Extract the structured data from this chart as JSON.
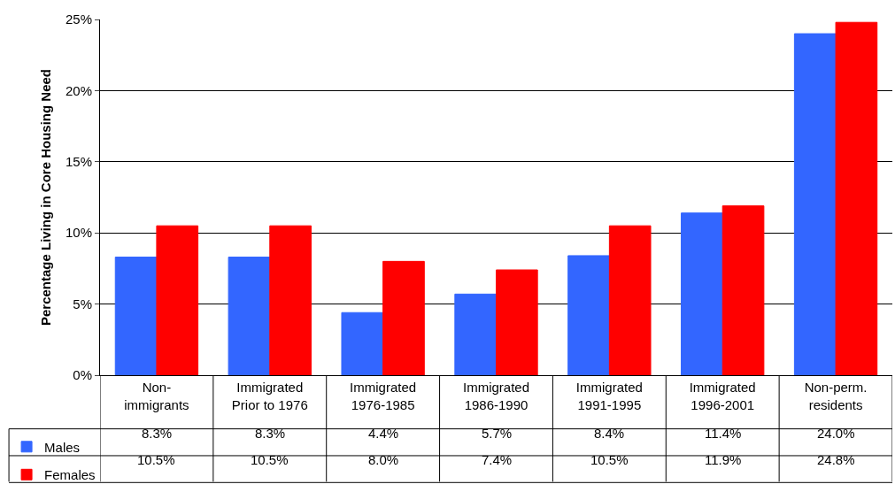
{
  "chart_data": {
    "type": "bar",
    "ylabel": "Percentage Living in Core Housing Need",
    "categories": [
      "Non-\nimmigrants",
      "Immigrated\nPrior to 1976",
      "Immigrated\n1976-1985",
      "Immigrated\n1986-1990",
      "Immigrated\n1991-1995",
      "Immigrated\n1996-2001",
      "Non-perm.\nresidents"
    ],
    "series": [
      {
        "name": "Males",
        "color": "#3366ff",
        "values": [
          8.3,
          8.3,
          4.4,
          5.7,
          8.4,
          11.4,
          24.0
        ],
        "value_labels": [
          "8.3%",
          "8.3%",
          "4.4%",
          "5.7%",
          "8.4%",
          "11.4%",
          "24.0%"
        ]
      },
      {
        "name": "Females",
        "color": "#ff0000",
        "values": [
          10.5,
          10.5,
          8.0,
          7.4,
          10.5,
          11.9,
          24.8
        ],
        "value_labels": [
          "10.5%",
          "10.5%",
          "8.0%",
          "7.4%",
          "10.5%",
          "11.9%",
          "24.8%"
        ]
      }
    ],
    "ylim": [
      0,
      25
    ],
    "yticks": [
      {
        "value": 0,
        "label": "0%"
      },
      {
        "value": 5,
        "label": "5%"
      },
      {
        "value": 10,
        "label": "10%"
      },
      {
        "value": 15,
        "label": "15%"
      },
      {
        "value": 20,
        "label": "20%"
      },
      {
        "value": 25,
        "label": "25%"
      }
    ],
    "grid": "y",
    "legend": "bottom left"
  }
}
